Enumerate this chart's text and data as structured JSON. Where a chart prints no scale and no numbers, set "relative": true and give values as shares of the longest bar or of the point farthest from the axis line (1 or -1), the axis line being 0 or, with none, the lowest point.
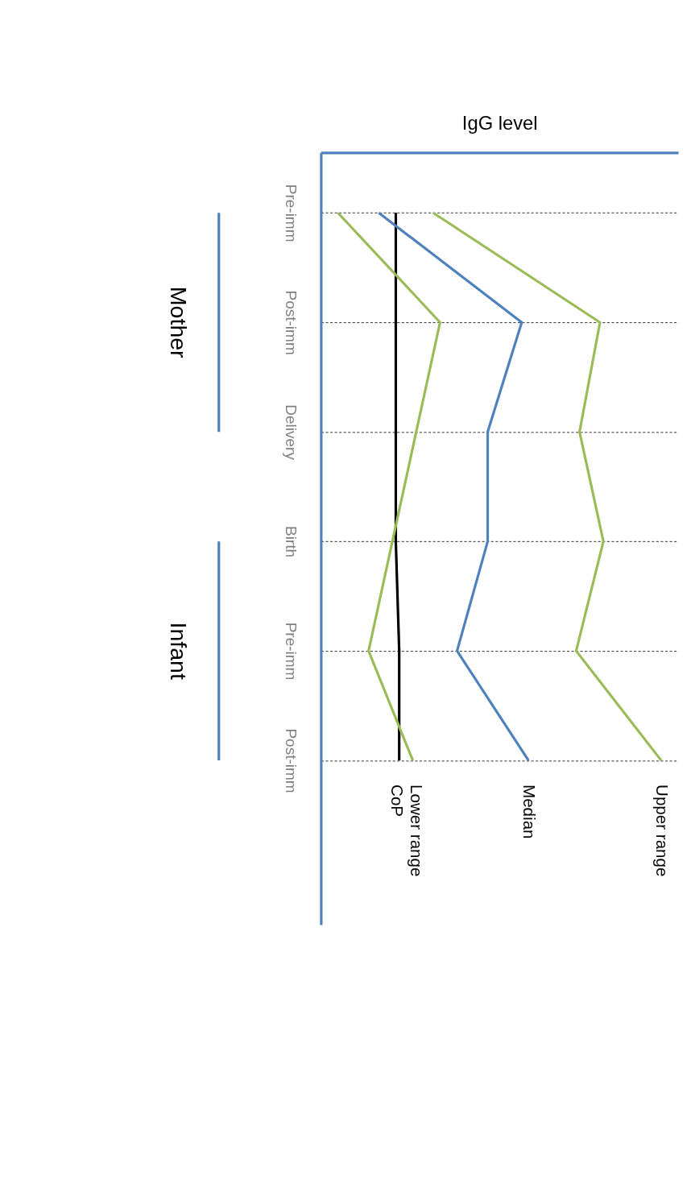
{
  "chart_data": {
    "type": "line",
    "orientation": "horizontal",
    "relative": true,
    "title": "IgG level",
    "categories": [
      "Pre-imm",
      "Post-imm",
      "Delivery",
      "Birth",
      "Pre-imm",
      "Post-imm"
    ],
    "series": [
      {
        "name": "CoP",
        "color": "#000000",
        "values": [
          0.22,
          0.22,
          0.22,
          0.22,
          0.23,
          0.23
        ]
      },
      {
        "name": "Lower range",
        "color": "#9bbb59",
        "values": [
          0.05,
          0.35,
          0.28,
          0.21,
          0.14,
          0.27
        ]
      },
      {
        "name": "Median",
        "color": "#4f81bd",
        "values": [
          0.17,
          0.59,
          0.49,
          0.49,
          0.4,
          0.61
        ]
      },
      {
        "name": "Upper range",
        "color": "#9bbb59",
        "values": [
          0.33,
          0.82,
          0.76,
          0.83,
          0.75,
          1.0
        ]
      }
    ],
    "annotations": [
      "Mother",
      "Infant"
    ],
    "grid": "y",
    "legend": false,
    "marker": "none",
    "line_style": "solid"
  }
}
